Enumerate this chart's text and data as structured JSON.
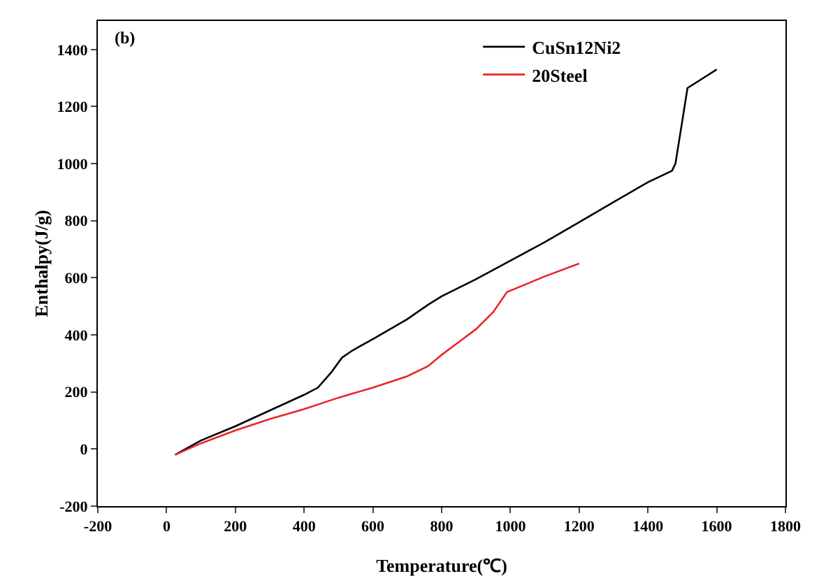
{
  "chart_data": {
    "type": "line",
    "xlabel": "Temperature(℃)",
    "ylabel": "Enthalpy(J/g)",
    "annotations": [
      "(b)"
    ],
    "xlim": [
      -200,
      1800
    ],
    "xticks": [
      -200,
      0,
      200,
      400,
      600,
      800,
      1000,
      1200,
      1400,
      1600,
      1800
    ],
    "ylim": [
      -200,
      1500
    ],
    "yticks": [
      -200,
      0,
      200,
      400,
      600,
      800,
      1000,
      1200,
      1400
    ],
    "grid": false,
    "legend": "top right",
    "marker": "none",
    "line_style": "solid",
    "series": [
      {
        "name": "CuSn12Ni2",
        "color": "#000000",
        "x": [
          25,
          100,
          200,
          300,
          400,
          440,
          480,
          510,
          540,
          600,
          700,
          760,
          800,
          900,
          1000,
          1100,
          1200,
          1300,
          1400,
          1470,
          1480,
          1500,
          1515,
          1600
        ],
        "values": [
          -20,
          30,
          80,
          135,
          190,
          215,
          270,
          320,
          345,
          385,
          455,
          505,
          535,
          595,
          660,
          725,
          795,
          865,
          935,
          975,
          1000,
          1150,
          1265,
          1330
        ]
      },
      {
        "name": "20Steel",
        "color": "#e8262b",
        "x": [
          25,
          100,
          200,
          300,
          400,
          500,
          600,
          700,
          760,
          800,
          850,
          900,
          950,
          990,
          1050,
          1100,
          1200
        ],
        "values": [
          -20,
          20,
          65,
          105,
          140,
          180,
          215,
          255,
          290,
          330,
          375,
          420,
          480,
          550,
          580,
          605,
          650
        ]
      }
    ]
  }
}
